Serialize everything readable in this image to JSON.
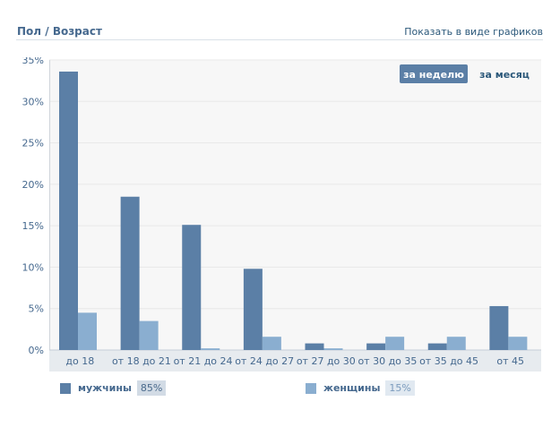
{
  "header": {
    "title": "Пол / Возраст",
    "toggle_link": "Показать в виде графиков"
  },
  "period": {
    "week": "за неделю",
    "month": "за месяц"
  },
  "legend": {
    "male": {
      "label": "мужчины",
      "percent": "85%"
    },
    "female": {
      "label": "женщины",
      "percent": "15%"
    }
  },
  "colors": {
    "male": "#5b7fa6",
    "female": "#8aaed0",
    "plot_bg": "#f7f7f7",
    "axis_bg": "#e7ebef",
    "grid": "#e8e8e8"
  },
  "chart_data": {
    "type": "bar",
    "categories": [
      "до 18",
      "от 18 до 21",
      "от 21 до 24",
      "от 24 до 27",
      "от 27 до 30",
      "от 30 до 35",
      "от 35 до 45",
      "от 45"
    ],
    "series": [
      {
        "name": "мужчины",
        "values": [
          33.6,
          18.5,
          15.1,
          9.8,
          0.8,
          0.8,
          0.8,
          5.3
        ]
      },
      {
        "name": "женщины",
        "values": [
          4.5,
          3.5,
          0.2,
          1.6,
          0.2,
          1.6,
          1.6,
          1.6
        ]
      }
    ],
    "yticks": [
      "0%",
      "5%",
      "10%",
      "15%",
      "20%",
      "25%",
      "30%",
      "35%"
    ],
    "ylim": [
      0,
      35
    ],
    "grid": true,
    "legend_position": "bottom"
  }
}
